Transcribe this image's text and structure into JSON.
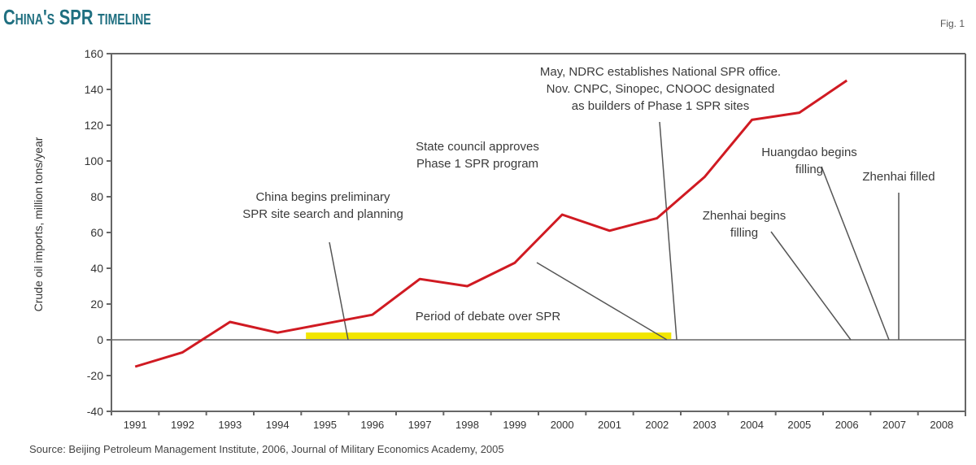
{
  "header": {
    "title": "China's SPR timeline",
    "fig_label": "Fig. 1"
  },
  "source": "Source: Beijing Petroleum Management Institute, 2006, Journal of Military Economics Academy, 2005",
  "colors": {
    "title": "#1f6f80",
    "series_line": "#d01a22",
    "debate_bar": "#f2e600",
    "axis": "#666666",
    "leader_lines": "#555555"
  },
  "chart_data": {
    "type": "line",
    "title": "China's SPR timeline",
    "xlabel": "",
    "ylabel": "Crude oil imports, million tons/year",
    "ylim": [
      -40,
      160
    ],
    "yticks": [
      -40,
      -20,
      0,
      20,
      40,
      60,
      80,
      100,
      120,
      140,
      160
    ],
    "categories": [
      "1991",
      "1992",
      "1993",
      "1994",
      "1995",
      "1996",
      "1997",
      "1998",
      "1999",
      "2000",
      "2001",
      "2002",
      "2003",
      "2004",
      "2005",
      "2006",
      "2007",
      "2008"
    ],
    "grid": false,
    "legend": null,
    "series": [
      {
        "name": "Crude oil imports",
        "x": [
          "1991",
          "1992",
          "1993",
          "1994",
          "1995",
          "1996",
          "1997",
          "1998",
          "1999",
          "2000",
          "2001",
          "2002",
          "2003",
          "2004",
          "2005",
          "2006"
        ],
        "values": [
          -15,
          -7,
          10,
          4,
          9,
          14,
          34,
          30,
          43,
          70,
          61,
          68,
          91,
          123,
          127,
          145
        ]
      }
    ],
    "highlight_band": {
      "label": "Period of debate over SPR",
      "start": "1994.6",
      "end": "2002.3"
    },
    "annotations": [
      {
        "lines": [
          "May, NDRC establishes National SPR office.",
          "Nov. CNPC, Sinopec, CNOOC designated",
          "as builders of Phase 1 SPR sites"
        ],
        "year": "2003"
      },
      {
        "lines": [
          "State council approves",
          "Phase 1 SPR program"
        ],
        "year": "2003"
      },
      {
        "lines": [
          "China begins preliminary",
          "SPR site search and planning"
        ],
        "year": "1995"
      },
      {
        "lines": [
          "Huangdao begins",
          "filling"
        ],
        "year": "2007"
      },
      {
        "lines": [
          "Zhenhai filled"
        ],
        "year": "2007"
      },
      {
        "lines": [
          "Zhenhai begins",
          "filling"
        ],
        "year": "2006"
      },
      {
        "lines": [
          "Period of debate over SPR"
        ],
        "year": "1998"
      }
    ]
  }
}
